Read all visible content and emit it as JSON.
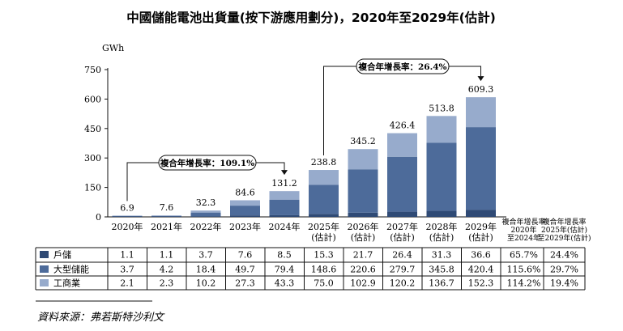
{
  "chart_data": {
    "type": "bar",
    "stacked": true,
    "title": "中國儲能電池出貨量(按下游應用劃分)，2020年至2029年(估計)",
    "ylabel": "GWh",
    "ylim": [
      0,
      750
    ],
    "yticks": [
      "0",
      "150",
      "300",
      "450",
      "600",
      "750"
    ],
    "categories": [
      "2020年",
      "2021年",
      "2022年",
      "2023年",
      "2024年",
      "2025年 (估計)",
      "2026年 (估計)",
      "2027年 (估計)",
      "2028年 (估計)",
      "2029年 (估計)"
    ],
    "category_lines": [
      [
        "2020年"
      ],
      [
        "2021年"
      ],
      [
        "2022年"
      ],
      [
        "2023年"
      ],
      [
        "2024年"
      ],
      [
        "2025年",
        "(估計)"
      ],
      [
        "2026年",
        "(估計)"
      ],
      [
        "2027年",
        "(估計)"
      ],
      [
        "2028年",
        "(估計)"
      ],
      [
        "2029年",
        "(估計)"
      ]
    ],
    "series": [
      {
        "name": "戶儲",
        "color": "#2f4a75",
        "values": [
          1.1,
          1.1,
          3.7,
          7.6,
          8.5,
          15.3,
          21.7,
          26.4,
          31.3,
          36.6
        ],
        "labels": [
          "1.1",
          "1.1",
          "3.7",
          "7.6",
          "8.5",
          "15.3",
          "21.7",
          "26.4",
          "31.3",
          "36.6"
        ]
      },
      {
        "name": "大型儲能",
        "color": "#4d6b9a",
        "values": [
          3.7,
          4.2,
          18.4,
          49.7,
          79.4,
          148.6,
          220.6,
          279.7,
          345.8,
          420.4
        ],
        "labels": [
          "3.7",
          "4.2",
          "18.4",
          "49.7",
          "79.4",
          "148.6",
          "220.6",
          "279.7",
          "345.8",
          "420.4"
        ]
      },
      {
        "name": "工商業",
        "color": "#97abcc",
        "values": [
          2.1,
          2.3,
          10.2,
          27.3,
          43.3,
          75.0,
          102.9,
          120.2,
          136.7,
          152.3
        ],
        "labels": [
          "2.1",
          "2.3",
          "10.2",
          "27.3",
          "43.3",
          "75.0",
          "102.9",
          "120.2",
          "136.7",
          "152.3"
        ]
      }
    ],
    "totals": [
      6.9,
      7.6,
      32.3,
      84.6,
      131.2,
      238.8,
      345.2,
      426.4,
      513.8,
      609.3
    ],
    "total_labels": [
      "6.9",
      "7.6",
      "32.3",
      "84.6",
      "131.2",
      "238.8",
      "345.2",
      "426.4",
      "513.8",
      "609.3"
    ],
    "cagr_headers": [
      [
        "複合年增長率",
        "2020年",
        "至2024年"
      ],
      [
        "複合年增長率",
        "2025年(估計)",
        "至2029年(估計)"
      ]
    ],
    "cagr_values": [
      [
        "65.7%",
        "24.4%"
      ],
      [
        "115.6%",
        "29.7%"
      ],
      [
        "114.2%",
        "19.4%"
      ]
    ],
    "annotations": [
      {
        "text": "複合年增長率：109.1%",
        "from": "2020年",
        "to": "2024年"
      },
      {
        "text": "複合年增長率：26.4%",
        "from": "2025年 (估計)",
        "to": "2029年 (估計)"
      }
    ]
  },
  "footer": {
    "source": "資料來源：弗若斯特沙利文"
  }
}
